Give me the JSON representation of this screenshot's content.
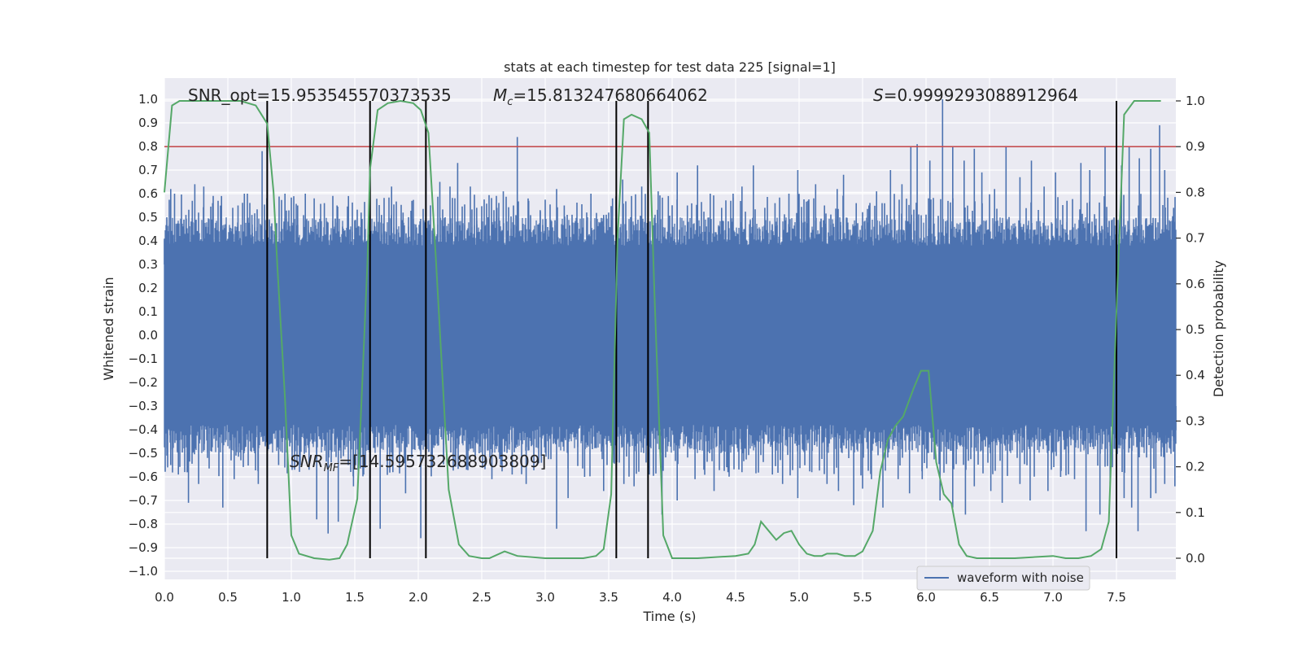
{
  "chart_data": {
    "type": "line",
    "title": "stats at each timestep for test data 225 [signal=1]",
    "xlabel": "Time (s)",
    "ylabel": "Whitened strain",
    "y2label": "Detection probability",
    "xlim": [
      0,
      8
    ],
    "ylim": [
      -1.03,
      1.06
    ],
    "y2lim": [
      -0.046,
      1.055
    ],
    "x_ticks": [
      "0.0",
      "0.5",
      "1.0",
      "1.5",
      "2.0",
      "2.5",
      "3.0",
      "3.5",
      "4.0",
      "4.5",
      "5.0",
      "5.5",
      "6.0",
      "6.5",
      "7.0",
      "7.5"
    ],
    "y_ticks": [
      "1.0",
      "0.9",
      "0.8",
      "0.7",
      "0.6",
      "0.5",
      "0.4",
      "0.3",
      "0.2",
      "0.1",
      "0.0",
      "-0.1",
      "-0.2",
      "-0.3",
      "-0.4",
      "-0.5",
      "-0.6",
      "-0.7",
      "-0.8",
      "-0.9",
      "-1.0"
    ],
    "y2_ticks": [
      "1.0",
      "0.9",
      "0.8",
      "0.7",
      "0.6",
      "0.5",
      "0.4",
      "0.3",
      "0.2",
      "0.1",
      "0.0"
    ],
    "grid": true,
    "legend": {
      "placement": "lower-right",
      "entries": [
        "waveform with noise"
      ]
    },
    "annotations": {
      "snr_opt": "SNR_opt=15.953545570373535",
      "mc_symbol": "M",
      "mc_sub": "c",
      "mc_value": "=15.813247680664062",
      "s_symbol": "S",
      "s_value": "=0.9999293088912964",
      "snr_mf_symbol": "SNR",
      "snr_mf_sub": "MF",
      "snr_mf_value": "=[14.595732688903809]"
    },
    "threshold": {
      "y2": 0.9,
      "color": "#c44e52"
    },
    "vertical_lines": [
      0.81,
      1.62,
      2.06,
      3.56,
      3.81,
      7.5
    ],
    "series": [
      {
        "name": "waveform with noise",
        "color": "#4c72b0",
        "description_band": {
          "core_low": -0.38,
          "core_high": 0.38
        },
        "peaks_up": [
          [
            0.02,
            0.49
          ],
          [
            0.05,
            0.62
          ],
          [
            0.08,
            0.6
          ],
          [
            0.17,
            0.51
          ],
          [
            0.22,
            0.57
          ],
          [
            0.24,
            0.64
          ],
          [
            0.31,
            0.63
          ],
          [
            0.38,
            0.56
          ],
          [
            0.45,
            0.59
          ],
          [
            0.58,
            0.55
          ],
          [
            0.63,
            0.6
          ],
          [
            0.69,
            0.51
          ],
          [
            0.77,
            0.78
          ],
          [
            0.81,
            0.81
          ],
          [
            0.95,
            0.6
          ],
          [
            1.05,
            0.55
          ],
          [
            1.11,
            0.6
          ],
          [
            1.18,
            0.58
          ],
          [
            1.26,
            0.56
          ],
          [
            1.36,
            0.55
          ],
          [
            1.45,
            0.59
          ],
          [
            1.55,
            0.52
          ],
          [
            1.62,
            0.62
          ],
          [
            1.71,
            0.51
          ],
          [
            1.79,
            0.63
          ],
          [
            1.88,
            0.52
          ],
          [
            1.95,
            0.57
          ],
          [
            2.06,
            0.7
          ],
          [
            2.17,
            0.65
          ],
          [
            2.25,
            0.63
          ],
          [
            2.31,
            0.73
          ],
          [
            2.41,
            0.63
          ],
          [
            2.46,
            0.54
          ],
          [
            2.55,
            0.5
          ],
          [
            2.62,
            0.54
          ],
          [
            2.67,
            0.61
          ],
          [
            2.75,
            0.55
          ],
          [
            2.78,
            0.84
          ],
          [
            2.87,
            0.57
          ],
          [
            2.96,
            0.53
          ],
          [
            3.09,
            0.62
          ],
          [
            3.15,
            0.55
          ],
          [
            3.25,
            0.51
          ],
          [
            3.36,
            0.6
          ],
          [
            3.46,
            0.51
          ],
          [
            3.53,
            0.58
          ],
          [
            3.61,
            0.66
          ],
          [
            3.68,
            0.59
          ],
          [
            3.76,
            0.63
          ],
          [
            3.89,
            0.61
          ],
          [
            3.97,
            0.59
          ],
          [
            4.04,
            0.69
          ],
          [
            4.12,
            0.55
          ],
          [
            4.2,
            0.72
          ],
          [
            4.3,
            0.6
          ],
          [
            4.39,
            0.54
          ],
          [
            4.48,
            0.6
          ],
          [
            4.55,
            0.63
          ],
          [
            4.64,
            0.72
          ],
          [
            4.73,
            0.54
          ],
          [
            4.81,
            0.56
          ],
          [
            4.92,
            0.6
          ],
          [
            4.99,
            0.7
          ],
          [
            5.07,
            0.57
          ],
          [
            5.13,
            0.64
          ],
          [
            5.2,
            0.55
          ],
          [
            5.3,
            0.62
          ],
          [
            5.35,
            0.68
          ],
          [
            5.45,
            0.56
          ],
          [
            5.55,
            0.55
          ],
          [
            5.61,
            0.61
          ],
          [
            5.72,
            0.7
          ],
          [
            5.81,
            0.64
          ],
          [
            5.88,
            0.8
          ],
          [
            5.93,
            0.81
          ],
          [
            6.03,
            0.74
          ],
          [
            6.13,
            1.0
          ],
          [
            6.21,
            0.8
          ],
          [
            6.3,
            0.74
          ],
          [
            6.38,
            0.79
          ],
          [
            6.44,
            0.69
          ],
          [
            6.54,
            0.62
          ],
          [
            6.63,
            0.8
          ],
          [
            6.74,
            0.67
          ],
          [
            6.83,
            0.74
          ],
          [
            6.93,
            0.63
          ],
          [
            7.02,
            0.69
          ],
          [
            7.11,
            0.57
          ],
          [
            7.22,
            0.73
          ],
          [
            7.29,
            0.7
          ],
          [
            7.41,
            0.8
          ],
          [
            7.54,
            0.72
          ],
          [
            7.6,
            0.8
          ],
          [
            7.68,
            0.75
          ],
          [
            7.77,
            0.79
          ],
          [
            7.84,
            0.89
          ],
          [
            7.88,
            0.7
          ],
          [
            7.95,
            0.54
          ]
        ],
        "peaks_down": [
          [
            0.02,
            -0.51
          ],
          [
            0.05,
            -0.55
          ],
          [
            0.11,
            -0.59
          ],
          [
            0.19,
            -0.71
          ],
          [
            0.27,
            -0.63
          ],
          [
            0.34,
            -0.52
          ],
          [
            0.46,
            -0.73
          ],
          [
            0.55,
            -0.61
          ],
          [
            0.63,
            -0.49
          ],
          [
            0.74,
            -0.63
          ],
          [
            0.81,
            -0.66
          ],
          [
            0.9,
            -0.55
          ],
          [
            1.07,
            -0.55
          ],
          [
            1.14,
            -0.57
          ],
          [
            1.2,
            -0.78
          ],
          [
            1.29,
            -0.84
          ],
          [
            1.37,
            -0.79
          ],
          [
            1.49,
            -0.64
          ],
          [
            1.57,
            -0.59
          ],
          [
            1.62,
            -0.66
          ],
          [
            1.7,
            -0.82
          ],
          [
            1.8,
            -0.58
          ],
          [
            1.9,
            -0.67
          ],
          [
            2.02,
            -0.86
          ],
          [
            2.11,
            -0.56
          ],
          [
            2.2,
            -0.52
          ],
          [
            2.29,
            -0.54
          ],
          [
            2.38,
            -0.57
          ],
          [
            2.48,
            -0.5
          ],
          [
            2.58,
            -0.61
          ],
          [
            2.65,
            -0.55
          ],
          [
            2.74,
            -0.59
          ],
          [
            2.85,
            -0.63
          ],
          [
            2.97,
            -0.54
          ],
          [
            3.09,
            -0.82
          ],
          [
            3.18,
            -0.69
          ],
          [
            3.31,
            -0.6
          ],
          [
            3.46,
            -0.66
          ],
          [
            3.54,
            -0.54
          ],
          [
            3.62,
            -0.63
          ],
          [
            3.7,
            -0.64
          ],
          [
            3.82,
            -0.59
          ],
          [
            3.92,
            -0.76
          ],
          [
            4.04,
            -0.7
          ],
          [
            4.18,
            -0.61
          ],
          [
            4.25,
            -0.57
          ],
          [
            4.33,
            -0.66
          ],
          [
            4.44,
            -0.58
          ],
          [
            4.55,
            -0.58
          ],
          [
            4.66,
            -0.56
          ],
          [
            4.79,
            -0.59
          ],
          [
            4.87,
            -0.63
          ],
          [
            4.99,
            -0.69
          ],
          [
            5.1,
            -0.58
          ],
          [
            5.22,
            -0.63
          ],
          [
            5.31,
            -0.66
          ],
          [
            5.43,
            -0.72
          ],
          [
            5.5,
            -0.65
          ],
          [
            5.57,
            -0.61
          ],
          [
            5.66,
            -0.73
          ],
          [
            5.78,
            -0.61
          ],
          [
            5.87,
            -0.67
          ],
          [
            5.97,
            -0.61
          ],
          [
            6.11,
            -0.7
          ],
          [
            6.21,
            -0.73
          ],
          [
            6.31,
            -0.76
          ],
          [
            6.38,
            -0.64
          ],
          [
            6.51,
            -0.66
          ],
          [
            6.6,
            -0.71
          ],
          [
            6.74,
            -0.63
          ],
          [
            6.82,
            -0.7
          ],
          [
            6.96,
            -0.66
          ],
          [
            7.06,
            -0.6
          ],
          [
            7.17,
            -0.61
          ],
          [
            7.26,
            -0.83
          ],
          [
            7.37,
            -0.76
          ],
          [
            7.45,
            -0.63
          ],
          [
            7.56,
            -0.69
          ],
          [
            7.62,
            -0.73
          ],
          [
            7.67,
            -0.83
          ],
          [
            7.77,
            -0.69
          ],
          [
            7.81,
            -0.67
          ],
          [
            7.88,
            -0.63
          ],
          [
            7.96,
            -0.64
          ]
        ]
      },
      {
        "name": "",
        "axis": "y2",
        "color": "#55a868",
        "points": [
          [
            0.0,
            0.8
          ],
          [
            0.06,
            0.99
          ],
          [
            0.12,
            1.0
          ],
          [
            0.4,
            1.0
          ],
          [
            0.6,
            1.0
          ],
          [
            0.72,
            0.99
          ],
          [
            0.81,
            0.95
          ],
          [
            0.86,
            0.8
          ],
          [
            0.89,
            0.64
          ],
          [
            0.95,
            0.35
          ],
          [
            1.0,
            0.05
          ],
          [
            1.06,
            0.01
          ],
          [
            1.18,
            0.0
          ],
          [
            1.3,
            -0.003
          ],
          [
            1.38,
            0.0
          ],
          [
            1.44,
            0.03
          ],
          [
            1.52,
            0.13
          ],
          [
            1.6,
            0.65
          ],
          [
            1.62,
            0.85
          ],
          [
            1.68,
            0.98
          ],
          [
            1.76,
            0.995
          ],
          [
            1.86,
            1.0
          ],
          [
            1.96,
            0.995
          ],
          [
            2.02,
            0.98
          ],
          [
            2.08,
            0.93
          ],
          [
            2.14,
            0.65
          ],
          [
            2.24,
            0.15
          ],
          [
            2.32,
            0.03
          ],
          [
            2.4,
            0.005
          ],
          [
            2.5,
            0.0
          ],
          [
            2.56,
            0.0
          ],
          [
            2.68,
            0.015
          ],
          [
            2.78,
            0.005
          ],
          [
            3.0,
            0.0
          ],
          [
            3.3,
            0.0
          ],
          [
            3.4,
            0.005
          ],
          [
            3.46,
            0.02
          ],
          [
            3.52,
            0.14
          ],
          [
            3.57,
            0.7
          ],
          [
            3.62,
            0.96
          ],
          [
            3.68,
            0.97
          ],
          [
            3.76,
            0.96
          ],
          [
            3.82,
            0.93
          ],
          [
            3.86,
            0.58
          ],
          [
            3.93,
            0.05
          ],
          [
            4.0,
            0.0
          ],
          [
            4.2,
            0.0
          ],
          [
            4.5,
            0.005
          ],
          [
            4.6,
            0.01
          ],
          [
            4.65,
            0.03
          ],
          [
            4.7,
            0.08
          ],
          [
            4.76,
            0.06
          ],
          [
            4.82,
            0.04
          ],
          [
            4.88,
            0.055
          ],
          [
            4.94,
            0.06
          ],
          [
            5.0,
            0.03
          ],
          [
            5.06,
            0.01
          ],
          [
            5.12,
            0.005
          ],
          [
            5.18,
            0.005
          ],
          [
            5.22,
            0.01
          ],
          [
            5.3,
            0.01
          ],
          [
            5.36,
            0.005
          ],
          [
            5.44,
            0.005
          ],
          [
            5.5,
            0.015
          ],
          [
            5.58,
            0.06
          ],
          [
            5.64,
            0.19
          ],
          [
            5.7,
            0.26
          ],
          [
            5.76,
            0.29
          ],
          [
            5.82,
            0.31
          ],
          [
            5.9,
            0.37
          ],
          [
            5.96,
            0.41
          ],
          [
            6.02,
            0.41
          ],
          [
            6.08,
            0.21
          ],
          [
            6.14,
            0.14
          ],
          [
            6.2,
            0.12
          ],
          [
            6.26,
            0.03
          ],
          [
            6.32,
            0.005
          ],
          [
            6.4,
            0.0
          ],
          [
            6.7,
            0.0
          ],
          [
            7.0,
            0.005
          ],
          [
            7.1,
            0.0
          ],
          [
            7.2,
            0.0
          ],
          [
            7.3,
            0.005
          ],
          [
            7.38,
            0.02
          ],
          [
            7.44,
            0.08
          ],
          [
            7.5,
            0.54
          ],
          [
            7.56,
            0.97
          ],
          [
            7.64,
            1.0
          ],
          [
            7.74,
            1.0
          ],
          [
            7.85,
            1.0
          ]
        ]
      }
    ]
  }
}
